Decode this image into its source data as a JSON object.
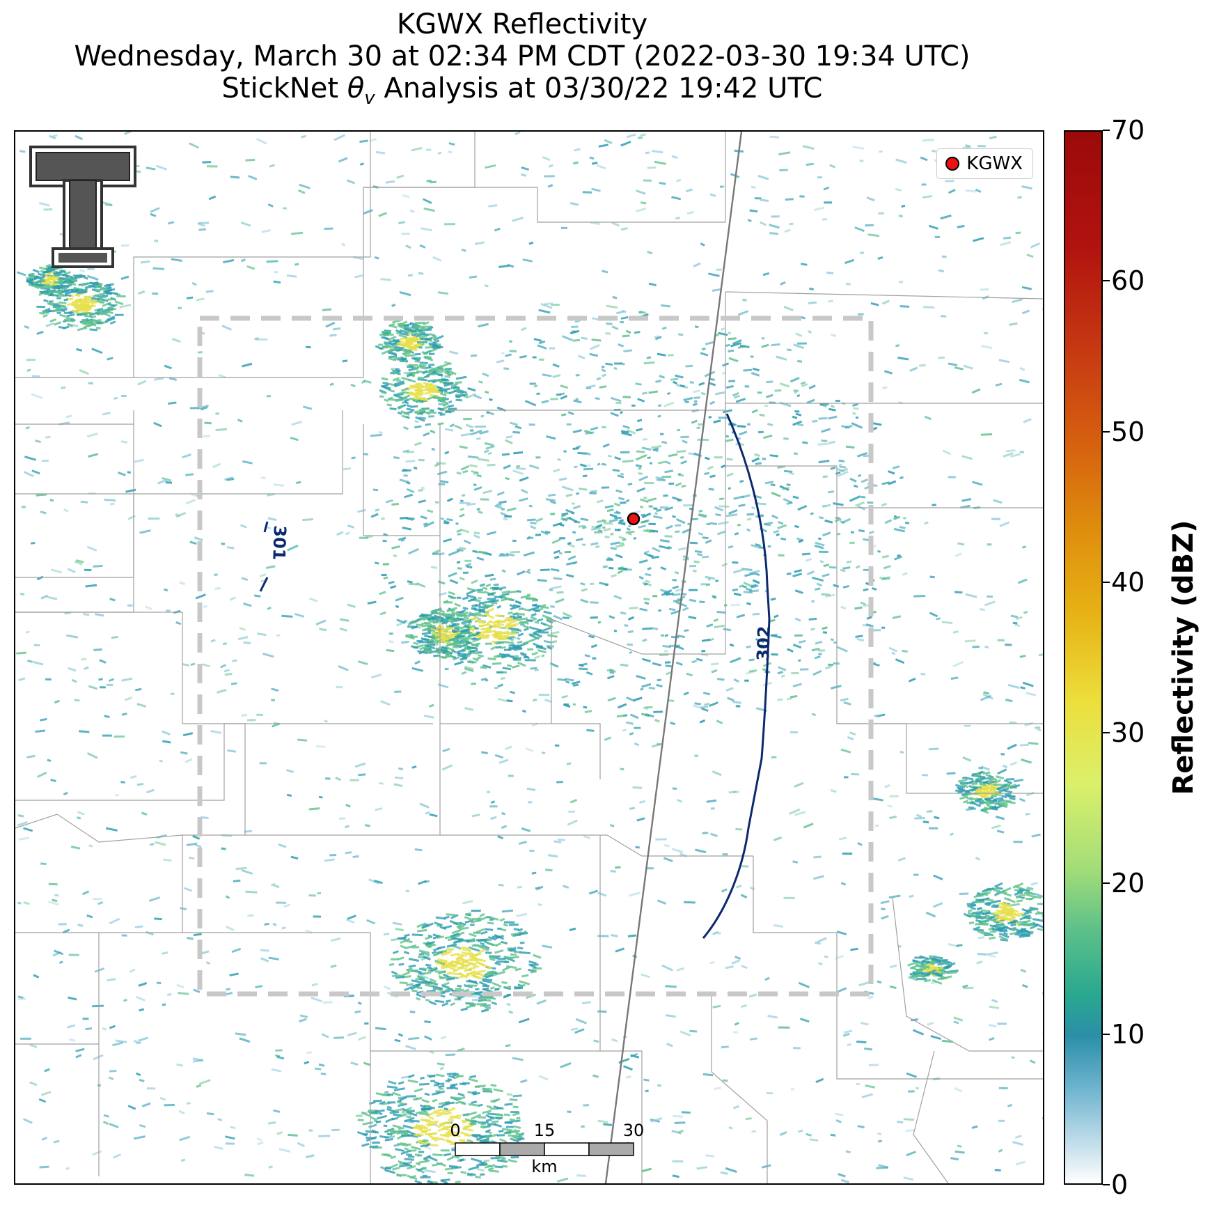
{
  "title": {
    "line1": "KGWX Reflectivity",
    "line2": "Wednesday, March 30 at 02:34 PM CDT (2022-03-30 19:34 UTC)",
    "line3_prefix": "StickNet ",
    "line3_theta": "θ",
    "line3_sub": "v",
    "line3_suffix": " Analysis at 03/30/22 19:42 UTC"
  },
  "legend": {
    "label": "KGWX",
    "marker_color": "#ee1111"
  },
  "contours": [
    {
      "label": "301",
      "color": "#0b2a6e"
    },
    {
      "label": "302",
      "color": "#0b2a6e"
    }
  ],
  "scale_bar": {
    "ticks": [
      "0",
      "15",
      "30"
    ],
    "unit": "km"
  },
  "colorbar": {
    "title": "Reflectivity (dBZ)",
    "min": 0,
    "max": 70,
    "ticks": [
      "0",
      "10",
      "20",
      "30",
      "40",
      "50",
      "60",
      "70"
    ]
  },
  "colors": {
    "low_echo": "#2a9bb0",
    "moderate_echo": "#5cc08a",
    "high_echo": "#e6e04a",
    "analysis_box": "#c8c8c8",
    "county_lines": "#9a9a9a",
    "interstate": "#777777"
  },
  "logo": {
    "icon": "texas-tech-double-t-logo"
  }
}
